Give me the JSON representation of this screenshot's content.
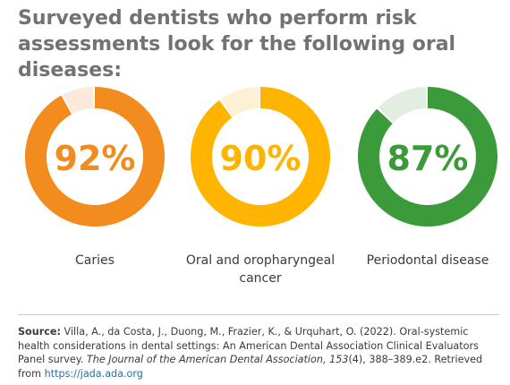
{
  "title": "Surveyed dentists who perform risk assessments look for the following oral diseases:",
  "chart_data": {
    "type": "pie",
    "variant": "donut",
    "unit": "%",
    "items": [
      {
        "label": "Caries",
        "value": 92,
        "value_label": "92%",
        "color": "#f28c1e",
        "remainder_color": "#fbeadb"
      },
      {
        "label": "Oral and oropharyngeal cancer",
        "value": 90,
        "value_label": "90%",
        "color": "#ffb400",
        "remainder_color": "#fdf0d3"
      },
      {
        "label": "Periodontal disease",
        "value": 87,
        "value_label": "87%",
        "color": "#3b9b3b",
        "remainder_color": "#e2efe0"
      }
    ]
  },
  "source": {
    "label": "Source:",
    "citation_pre": "Villa, A., da Costa, J., Duong, M., Frazier, K., & Urquhart, O. (2022). Oral-systemic health considerations in dental settings: An American Dental Association Clinical Evaluators Panel survey.",
    "journal": "The Journal of the American Dental Association, 153",
    "citation_post": "(4), 388–389.e2. Retrieved from",
    "link_text": "https://jada.ada.org"
  }
}
